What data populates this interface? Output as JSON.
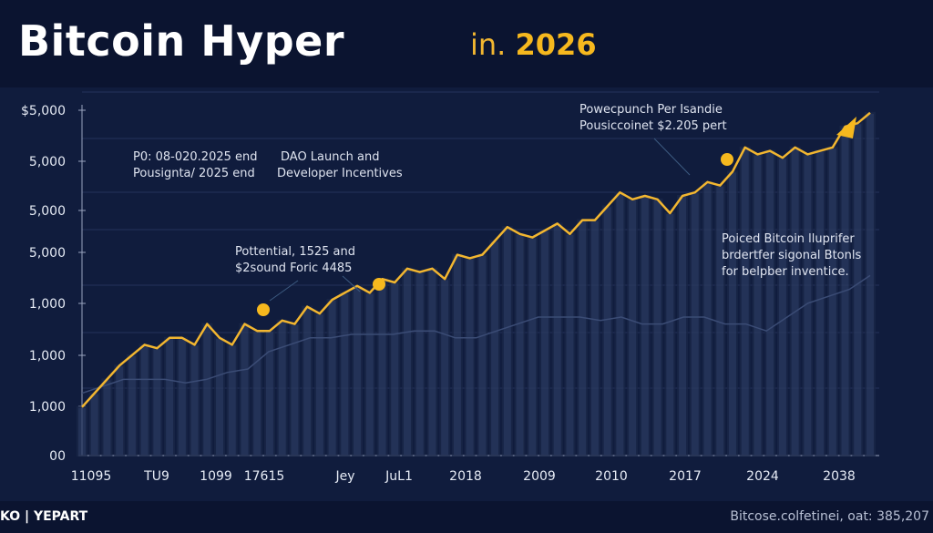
{
  "header": {
    "title": "Bitcoin Hyper",
    "subtitle_prefix": "in.",
    "subtitle_year": "2026"
  },
  "footer": {
    "brand": "KO | YEPART",
    "source": "Bitcose.colfetinei, oat: 385,207"
  },
  "colors": {
    "background": "#101c3d",
    "line": "#f2b630",
    "marker": "#f6b81e",
    "bars": "#2a3a60",
    "secondary_line": "#3b4c75"
  },
  "chart_data": {
    "type": "line",
    "title": "Bitcoin Hyper in. 2026",
    "y_tick_labels": [
      "00",
      "1,000",
      "1,000",
      "1,000",
      "5,000",
      "5,000",
      "5,000",
      "$5,000"
    ],
    "x_tick_labels": [
      "11095",
      "TU9",
      "1099",
      "17615",
      "Jey",
      "JuL1",
      "2018",
      "2009",
      "2010",
      "2017",
      "2024",
      "2038"
    ],
    "ylim": [
      0,
      100
    ],
    "grid": true,
    "series": [
      {
        "values": [
          14,
          18,
          22,
          26,
          29,
          32,
          31,
          34,
          34,
          32,
          38,
          34,
          32,
          38,
          36,
          36,
          39,
          38,
          43,
          41,
          45,
          47,
          49,
          47,
          51,
          50,
          54,
          53,
          54,
          51,
          58,
          57,
          58,
          62,
          66,
          64,
          63,
          65,
          67,
          64,
          68,
          68,
          72,
          76,
          74,
          75,
          74,
          70,
          75,
          76,
          79,
          78,
          82,
          89,
          87,
          88,
          86,
          89,
          87,
          88,
          89,
          95,
          96,
          99
        ]
      },
      {
        "values": [
          18,
          20,
          22,
          22,
          22,
          21,
          22,
          24,
          25,
          30,
          32,
          34,
          34,
          35,
          35,
          35,
          36,
          36,
          34,
          34,
          36,
          38,
          40,
          40,
          40,
          39,
          40,
          38,
          38,
          40,
          40,
          38,
          38,
          36,
          40,
          44,
          46,
          48,
          52
        ]
      }
    ],
    "markers": [
      {
        "index": "a"
      },
      {
        "index": "b"
      },
      {
        "index": "c"
      }
    ],
    "annotations": [
      {
        "lines": [
          "P0: 08-020.2025 end",
          "Pousignta/ 2025 end"
        ]
      },
      {
        "lines": [
          "DAO Launch and",
          "Developer Incentives"
        ]
      },
      {
        "lines": [
          "Pottential, 1525 and",
          "$2sound  Foric 4485"
        ]
      },
      {
        "lines": [
          "Powecpunch Per Isandie",
          "Pousiccoinet $2.205 pert"
        ]
      },
      {
        "lines": [
          "Poiced Bitcoin lluprifer",
          "brdertfer sigonal Btonls",
          "for belpber inventice."
        ]
      }
    ]
  }
}
